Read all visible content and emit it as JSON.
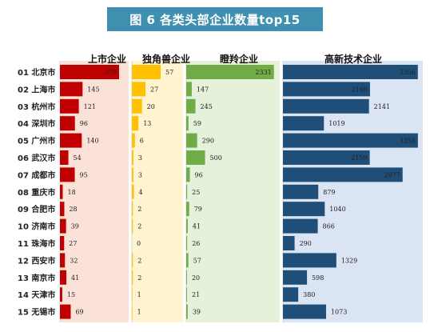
{
  "title": "图 6  各类头部企业数量top15",
  "chart_data": {
    "type": "bar",
    "title": "图 6  各类头部企业数量top15",
    "categories": [
      "01 北京市",
      "02 上海市",
      "03 杭州市",
      "04 深圳市",
      "05 广州市",
      "06 武汉市",
      "07 成都市",
      "08 重庆市",
      "09 合肥市",
      "10 济南市",
      "11 珠海市",
      "12 西安市",
      "13 南京市",
      "14 天津市",
      "15 无锡市"
    ],
    "series": [
      {
        "name": "上市企业",
        "color": "#c00000",
        "bg": "#fbe2d8",
        "values": [
          379,
          145,
          121,
          96,
          140,
          54,
          95,
          18,
          28,
          39,
          27,
          32,
          41,
          15,
          69
        ]
      },
      {
        "name": "独角兽企业",
        "color": "#ffc000",
        "bg": "#fff4cf",
        "values": [
          57,
          27,
          20,
          13,
          6,
          3,
          3,
          4,
          2,
          2,
          0,
          2,
          2,
          1,
          1
        ]
      },
      {
        "name": "瞪羚企业",
        "color": "#70ad47",
        "bg": "#e6f1dc",
        "values": [
          2331,
          147,
          245,
          59,
          290,
          500,
          96,
          25,
          79,
          41,
          26,
          57,
          20,
          21,
          39
        ]
      },
      {
        "name": "高新技术企业",
        "color": "#1f4e79",
        "bg": "#dae4f2",
        "values": [
          3356,
          2166,
          2141,
          1019,
          3358,
          2159,
          2977,
          879,
          1040,
          866,
          290,
          1329,
          598,
          380,
          1073
        ]
      }
    ]
  }
}
